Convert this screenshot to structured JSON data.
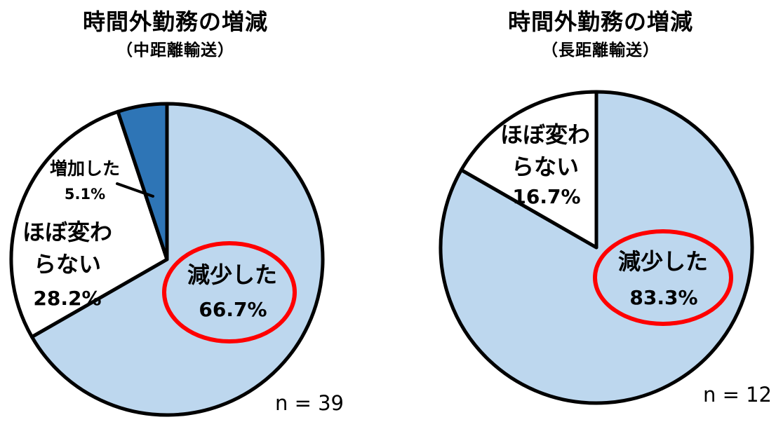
{
  "page": {
    "background_color": "#FFFFFF"
  },
  "chart_data": [
    {
      "type": "pie",
      "title": "時間外勤務の増減",
      "subtitle": "（中距離輸送）",
      "sample_size_label": "n = 39",
      "labels": [
        "減少した",
        "ほぼ変わらない",
        "増加した"
      ],
      "label_lines": [
        [
          "減少した"
        ],
        [
          "ほぼ変わ",
          "らない"
        ],
        [
          "増加した"
        ]
      ],
      "values": [
        66.7,
        28.2,
        5.1
      ],
      "value_labels": [
        "66.7%",
        "28.2%",
        "5.1%"
      ],
      "colors": [
        "#BDD7EE",
        "#FFFFFF",
        "#2E75B6"
      ],
      "outline_color": "#000000",
      "start_angle_deg": 0,
      "direction": "clockwise",
      "highlight": {
        "slice": "減少した",
        "shape": "red-ellipse",
        "color": "#FF0000"
      },
      "leader_line": {
        "from_label": "増加した",
        "to_slice": "増加した"
      }
    },
    {
      "type": "pie",
      "title": "時間外勤務の増減",
      "subtitle": "（長距離輸送）",
      "sample_size_label": "n = 12",
      "labels": [
        "減少した",
        "ほぼ変わらない"
      ],
      "label_lines": [
        [
          "減少した"
        ],
        [
          "ほぼ変わ",
          "らない"
        ]
      ],
      "values": [
        83.3,
        16.7
      ],
      "value_labels": [
        "83.3%",
        "16.7%"
      ],
      "colors": [
        "#BDD7EE",
        "#FFFFFF"
      ],
      "outline_color": "#000000",
      "start_angle_deg": 0,
      "direction": "clockwise",
      "highlight": {
        "slice": "減少した",
        "shape": "red-ellipse",
        "color": "#FF0000"
      }
    }
  ]
}
